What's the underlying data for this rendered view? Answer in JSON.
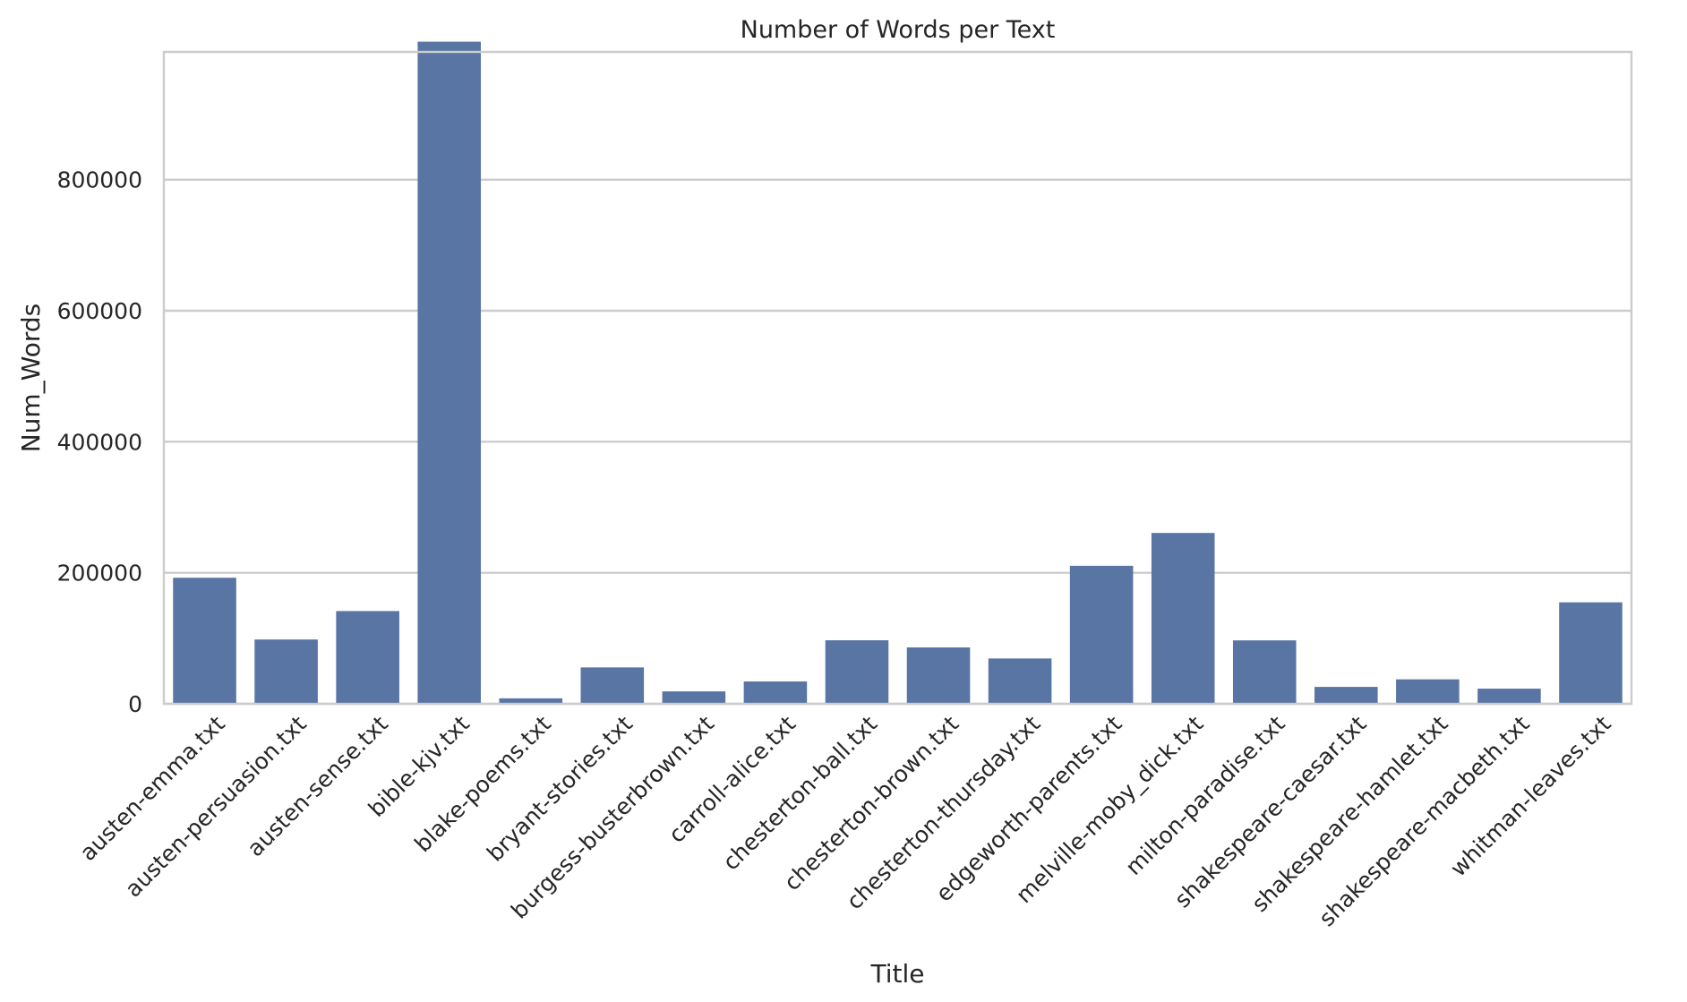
{
  "chart_data": {
    "type": "bar",
    "title": "Number of Words per Text",
    "xlabel": "Title",
    "ylabel": "Num_Words",
    "categories": [
      "austen-emma.txt",
      "austen-persuasion.txt",
      "austen-sense.txt",
      "bible-kjv.txt",
      "blake-poems.txt",
      "bryant-stories.txt",
      "burgess-busterbrown.txt",
      "carroll-alice.txt",
      "chesterton-ball.txt",
      "chesterton-brown.txt",
      "chesterton-thursday.txt",
      "edgeworth-parents.txt",
      "melville-moby_dick.txt",
      "milton-paradise.txt",
      "shakespeare-caesar.txt",
      "shakespeare-hamlet.txt",
      "shakespeare-macbeth.txt",
      "whitman-leaves.txt"
    ],
    "values": [
      192427,
      98171,
      141576,
      1010654,
      8354,
      55563,
      18963,
      34110,
      96996,
      86063,
      69213,
      210663,
      260819,
      96825,
      25833,
      37360,
      23140,
      154883
    ],
    "ylim": [
      0,
      995000
    ],
    "yticks": [
      0,
      200000,
      400000,
      600000,
      800000
    ],
    "ytick_labels": [
      "0",
      "200000",
      "400000",
      "600000",
      "800000"
    ],
    "grid": true,
    "bar_color": "#5975a4",
    "grid_color": "#cccccc"
  }
}
